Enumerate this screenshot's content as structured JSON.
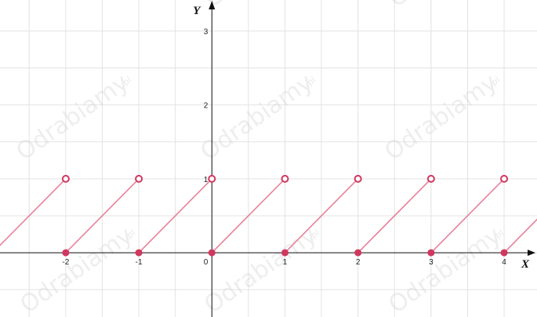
{
  "chart_data": {
    "type": "line",
    "title": "",
    "xlabel": "X",
    "ylabel": "Y",
    "xlim": [
      -2.9,
      4.45
    ],
    "ylim": [
      -0.87,
      3.42
    ],
    "grid": true,
    "x_ticks": [
      -2,
      -1,
      0,
      1,
      2,
      3,
      4
    ],
    "x_tick_labels": [
      "-2",
      "-1",
      "0",
      "1",
      "2",
      "3",
      "4"
    ],
    "y_ticks": [
      1,
      2,
      3
    ],
    "y_tick_labels": [
      "1",
      "2",
      "3"
    ],
    "origin_label": "0",
    "line_color": "#e8819a",
    "point_color": "#d1375f",
    "segments": [
      {
        "x": [
          -3,
          -2
        ],
        "y": [
          0,
          1
        ]
      },
      {
        "x": [
          -2,
          -1
        ],
        "y": [
          0,
          1
        ]
      },
      {
        "x": [
          -1,
          0
        ],
        "y": [
          0,
          1
        ]
      },
      {
        "x": [
          0,
          1
        ],
        "y": [
          0,
          1
        ]
      },
      {
        "x": [
          1,
          2
        ],
        "y": [
          0,
          1
        ]
      },
      {
        "x": [
          2,
          3
        ],
        "y": [
          0,
          1
        ]
      },
      {
        "x": [
          3,
          4
        ],
        "y": [
          0,
          1
        ]
      },
      {
        "x": [
          4,
          5
        ],
        "y": [
          0,
          1
        ]
      }
    ],
    "closed_points": [
      [
        -2,
        0
      ],
      [
        -1,
        0
      ],
      [
        0,
        0
      ],
      [
        1,
        0
      ],
      [
        2,
        0
      ],
      [
        3,
        0
      ],
      [
        4,
        0
      ]
    ],
    "open_points": [
      [
        -2,
        1
      ],
      [
        -1,
        1
      ],
      [
        0,
        1
      ],
      [
        1,
        1
      ],
      [
        2,
        1
      ],
      [
        3,
        1
      ],
      [
        4,
        1
      ]
    ]
  },
  "watermark": {
    "text": "Odrabiamy",
    "suffix": ".pl"
  }
}
